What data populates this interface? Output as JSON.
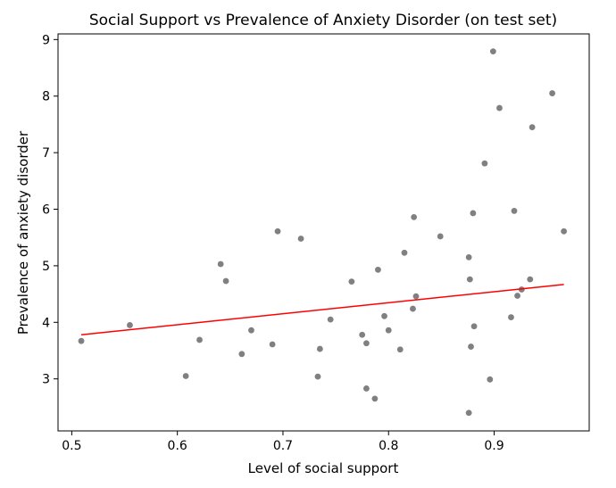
{
  "chart_data": {
    "type": "scatter",
    "title": "Social Support vs Prevalence of Anxiety Disorder (on test set)",
    "xlabel": "Level of social support",
    "ylabel": "Prevalence of anxiety disorder",
    "xlim": [
      0.487,
      0.99
    ],
    "ylim": [
      2.08,
      9.1
    ],
    "xticks": [
      0.5,
      0.6,
      0.7,
      0.8,
      0.9
    ],
    "xtick_labels": [
      "0.5",
      "0.6",
      "0.7",
      "0.8",
      "0.9"
    ],
    "yticks": [
      3,
      4,
      5,
      6,
      7,
      8,
      9
    ],
    "ytick_labels": [
      "3",
      "4",
      "5",
      "6",
      "7",
      "8",
      "9"
    ],
    "grid": false,
    "colors": {
      "points": "#808080",
      "fit_line": "#ff0000"
    },
    "points": {
      "x": [
        0.509,
        0.555,
        0.608,
        0.621,
        0.641,
        0.646,
        0.661,
        0.67,
        0.69,
        0.695,
        0.717,
        0.733,
        0.735,
        0.745,
        0.765,
        0.775,
        0.779,
        0.779,
        0.787,
        0.79,
        0.796,
        0.8,
        0.811,
        0.815,
        0.823,
        0.824,
        0.826,
        0.849,
        0.876,
        0.876,
        0.877,
        0.878,
        0.88,
        0.881,
        0.891,
        0.896,
        0.899,
        0.905,
        0.916,
        0.919,
        0.922,
        0.926,
        0.934,
        0.936,
        0.955,
        0.966
      ],
      "y": [
        3.67,
        3.95,
        3.05,
        3.69,
        5.03,
        4.73,
        3.44,
        3.86,
        3.61,
        5.61,
        5.48,
        3.04,
        3.53,
        4.05,
        4.72,
        3.78,
        3.63,
        2.83,
        2.65,
        4.93,
        4.11,
        3.86,
        3.52,
        5.23,
        4.24,
        5.86,
        4.46,
        5.52,
        2.4,
        5.15,
        4.76,
        3.57,
        5.93,
        3.93,
        6.81,
        2.99,
        8.79,
        7.79,
        4.09,
        5.97,
        4.47,
        4.58,
        4.76,
        7.45,
        8.05,
        5.61
      ]
    },
    "fit_line": {
      "x": [
        0.509,
        0.966
      ],
      "y": [
        3.78,
        4.67
      ]
    }
  }
}
